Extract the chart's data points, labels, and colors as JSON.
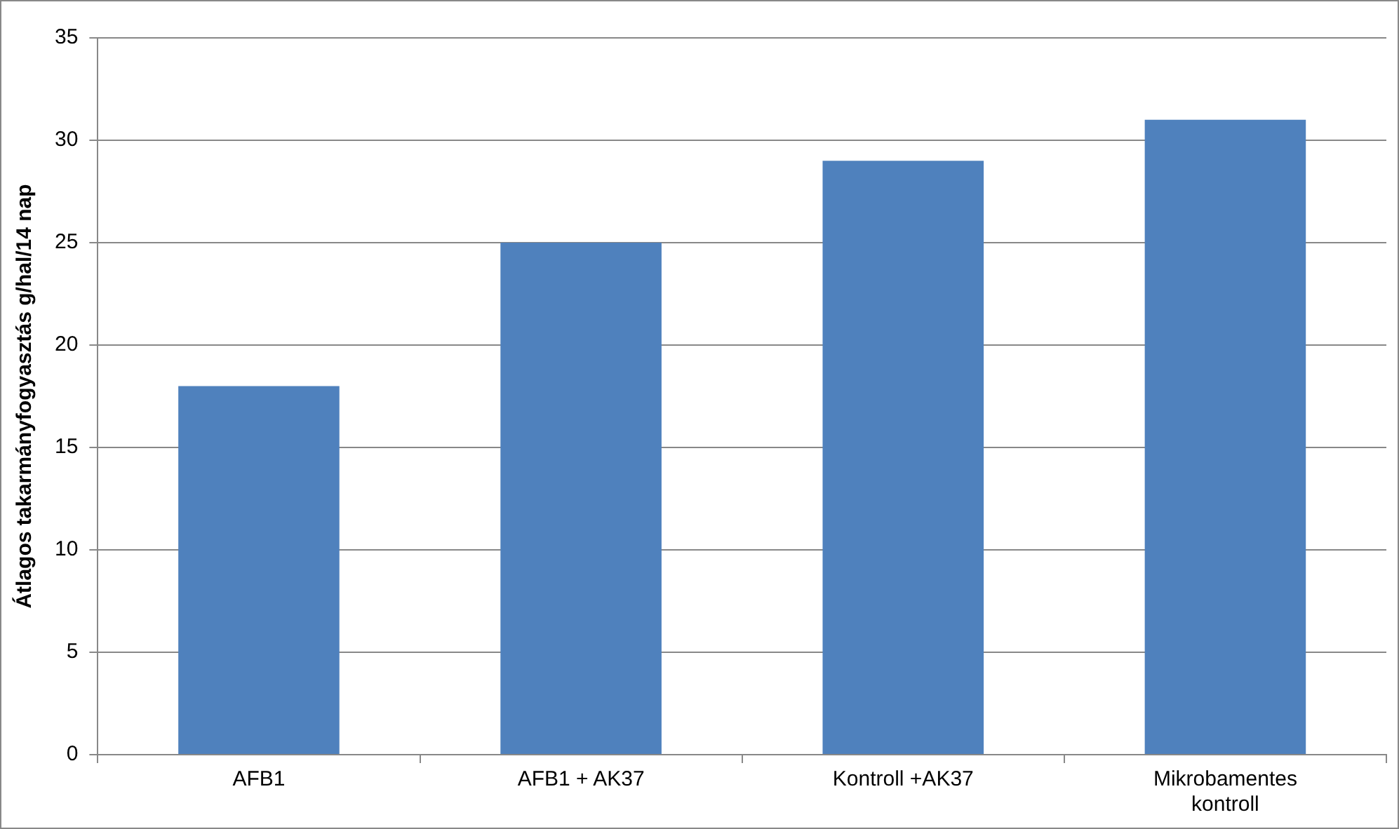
{
  "chart_data": {
    "type": "bar",
    "ylabel": "Átlagos takarmányfogyasztás g/hal/14 nap",
    "categories": [
      "AFB1",
      "AFB1 + AK37",
      "Kontroll +AK37",
      "Mikrobamentes kontroll"
    ],
    "values": [
      18,
      25,
      29,
      31
    ],
    "color": "#4f81bd",
    "ylim": [
      0,
      35
    ],
    "yticks": [
      0,
      5,
      10,
      15,
      20,
      25,
      30,
      35
    ],
    "grid": "y"
  }
}
